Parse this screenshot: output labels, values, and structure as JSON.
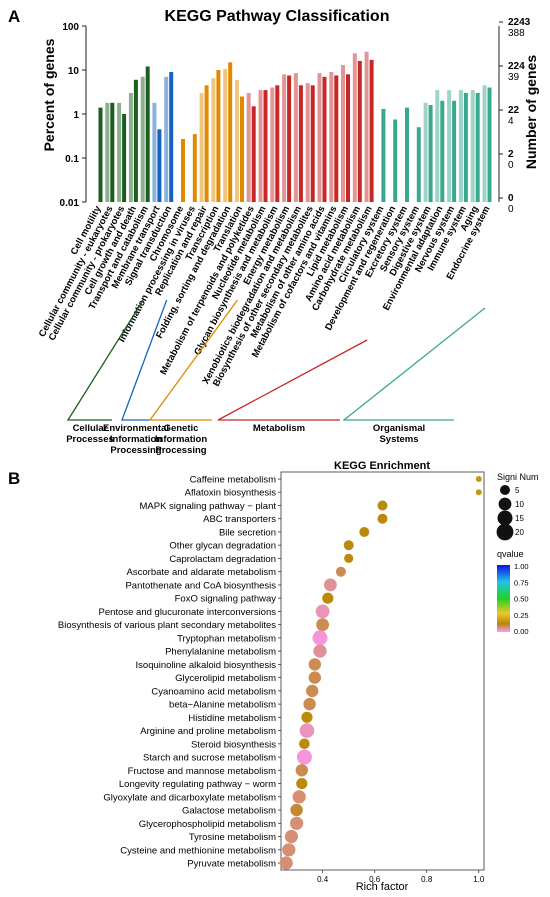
{
  "chart_data": [
    {
      "panel_label": "A",
      "type": "bar",
      "title": "KEGG Pathway Classification",
      "ylabel": "Percent of genes",
      "ylabel_right": "Number of genes",
      "yscale": "log",
      "ylim": [
        0.01,
        100
      ],
      "yticks": [
        "100",
        "10",
        "1",
        "0.1",
        "0.01"
      ],
      "right_ticks_upper": [
        "2243",
        "224",
        "22",
        "2",
        "0"
      ],
      "right_ticks_lower": [
        "388",
        "39",
        "4",
        "0",
        "0"
      ],
      "categories": [
        "Cell motility",
        "Cellular community - eukaryotes",
        "Cellular community - prokaryotes",
        "Cell growth and death",
        "Transport and catabolism",
        "Membrane transport",
        "Signal transduction",
        "Chromosome",
        "Information processing in viruses",
        "Replication and repair",
        "Transcription",
        "Folding, sorting and degradation",
        "Translation",
        "Metabolism of terpenoids and polyketides",
        "Nucleotide metabolism",
        "Glycan biosynthesis and metabolism",
        "Energy metabolism",
        "Xenobiotics biodegradation and metabolism",
        "Biosynthesis of other secondary metabolites",
        "Metabolism of other amino acids",
        "Metabolism of cofactors and vitamins",
        "Lipid metabolism",
        "Amino acid metabolism",
        "Carbohydrate metabolism",
        "Circulatory system",
        "Development and regeneration",
        "Excretory system",
        "Sensory system",
        "Digestive system",
        "Environmental adaptation",
        "Nervous system",
        "Immune system",
        "Aging",
        "Endocrine system"
      ],
      "groups": [
        {
          "name": "Cellular Processes",
          "from": 0,
          "to": 4,
          "color": "#1b5e20"
        },
        {
          "name": "Environmental Information Processing",
          "from": 5,
          "to": 6,
          "color": "#1565c0"
        },
        {
          "name": "Genetic Information Processing",
          "from": 7,
          "to": 12,
          "color": "#e08a00"
        },
        {
          "name": "Metabolism",
          "from": 13,
          "to": 23,
          "color": "#c62828"
        },
        {
          "name": "Organismal Systems",
          "from": 24,
          "to": 33,
          "color": "#3aa88f"
        }
      ],
      "series": [
        {
          "values": [
            0.0,
            1.8,
            1.8,
            3.0,
            7.0,
            1.8,
            7.0,
            0.0,
            0.0,
            3.0,
            6.5,
            10.5,
            6.0,
            3.0,
            3.5,
            4.0,
            8.0,
            8.5,
            5.0,
            8.5,
            9.0,
            13.0,
            24.0,
            26.0,
            0.0,
            0.0,
            0.0,
            0.0,
            1.8,
            3.5,
            3.5,
            3.5,
            3.5,
            4.5
          ]
        },
        {
          "values": [
            1.4,
            1.8,
            1.0,
            6.0,
            12.0,
            0.45,
            9.0,
            0.27,
            0.35,
            4.5,
            10.0,
            15.0,
            2.5,
            1.5,
            3.5,
            4.5,
            7.5,
            4.5,
            4.5,
            7.0,
            7.5,
            8.0,
            16.0,
            17.0,
            1.3,
            0.75,
            1.4,
            0.5,
            1.6,
            2.0,
            2.0,
            3.0,
            3.0,
            4.0
          ]
        }
      ]
    },
    {
      "panel_label": "B",
      "type": "scatter",
      "title": "KEGG Enrichment",
      "xlabel": "Rich factor",
      "xlim": [
        0.24,
        1.02
      ],
      "xticks": [
        "0.4",
        "0.6",
        "0.8",
        "1.0"
      ],
      "size_legend_title": "Signi Num",
      "size_legend": [
        "5",
        "10",
        "15",
        "20"
      ],
      "color_legend_title": "qvalue",
      "color_ticks": [
        "1.00",
        "0.75",
        "0.50",
        "0.25",
        "0.00"
      ],
      "points": [
        {
          "pathway": "Caffeine metabolism",
          "x": 1.0,
          "count": 1,
          "q": 0.12
        },
        {
          "pathway": "Aflatoxin biosynthesis",
          "x": 1.0,
          "count": 1,
          "q": 0.12
        },
        {
          "pathway": "MAPK signaling pathway − plant",
          "x": 0.63,
          "count": 5,
          "q": 0.08
        },
        {
          "pathway": "ABC transporters",
          "x": 0.63,
          "count": 5,
          "q": 0.08
        },
        {
          "pathway": "Bile secretion",
          "x": 0.56,
          "count": 5,
          "q": 0.08
        },
        {
          "pathway": "Other glycan degradation",
          "x": 0.5,
          "count": 5,
          "q": 0.08
        },
        {
          "pathway": "Caprolactam degradation",
          "x": 0.5,
          "count": 4,
          "q": 0.08
        },
        {
          "pathway": "Ascorbate and aldarate metabolism",
          "x": 0.47,
          "count": 5,
          "q": 0.05
        },
        {
          "pathway": "Pantothenate and CoA biosynthesis",
          "x": 0.43,
          "count": 10,
          "q": 0.03
        },
        {
          "pathway": "FoxO signaling pathway",
          "x": 0.42,
          "count": 7,
          "q": 0.08
        },
        {
          "pathway": "Pentose and glucuronate interconversions",
          "x": 0.4,
          "count": 12,
          "q": 0.02
        },
        {
          "pathway": "Biosynthesis of various plant secondary metabolites",
          "x": 0.4,
          "count": 10,
          "q": 0.05
        },
        {
          "pathway": "Tryptophan metabolism",
          "x": 0.39,
          "count": 15,
          "q": 0.01
        },
        {
          "pathway": "Phenylalanine metabolism",
          "x": 0.39,
          "count": 11,
          "q": 0.03
        },
        {
          "pathway": "Isoquinoline alkaloid biosynthesis",
          "x": 0.37,
          "count": 9,
          "q": 0.05
        },
        {
          "pathway": "Glycerolipid metabolism",
          "x": 0.37,
          "count": 9,
          "q": 0.05
        },
        {
          "pathway": "Cyanoamino acid metabolism",
          "x": 0.36,
          "count": 9,
          "q": 0.05
        },
        {
          "pathway": "beta−Alanine metabolism",
          "x": 0.35,
          "count": 9,
          "q": 0.05
        },
        {
          "pathway": "Histidine metabolism",
          "x": 0.34,
          "count": 7,
          "q": 0.08
        },
        {
          "pathway": "Arginine and proline metabolism",
          "x": 0.34,
          "count": 14,
          "q": 0.02
        },
        {
          "pathway": "Steroid biosynthesis",
          "x": 0.33,
          "count": 6,
          "q": 0.08
        },
        {
          "pathway": "Starch and sucrose metabolism",
          "x": 0.33,
          "count": 15,
          "q": 0.01
        },
        {
          "pathway": "Fructose and mannose metabolism",
          "x": 0.32,
          "count": 9,
          "q": 0.05
        },
        {
          "pathway": "Longevity regulating pathway − worm",
          "x": 0.32,
          "count": 7,
          "q": 0.08
        },
        {
          "pathway": "Glyoxylate and dicarboxylate metabolism",
          "x": 0.31,
          "count": 11,
          "q": 0.04
        },
        {
          "pathway": "Galactose metabolism",
          "x": 0.3,
          "count": 9,
          "q": 0.06
        },
        {
          "pathway": "Glycerophospholipid metabolism",
          "x": 0.3,
          "count": 11,
          "q": 0.04
        },
        {
          "pathway": "Tyrosine metabolism",
          "x": 0.28,
          "count": 11,
          "q": 0.04
        },
        {
          "pathway": "Cysteine and methionine metabolism",
          "x": 0.27,
          "count": 11,
          "q": 0.04
        },
        {
          "pathway": "Pyruvate metabolism",
          "x": 0.26,
          "count": 11,
          "q": 0.04
        }
      ]
    }
  ]
}
